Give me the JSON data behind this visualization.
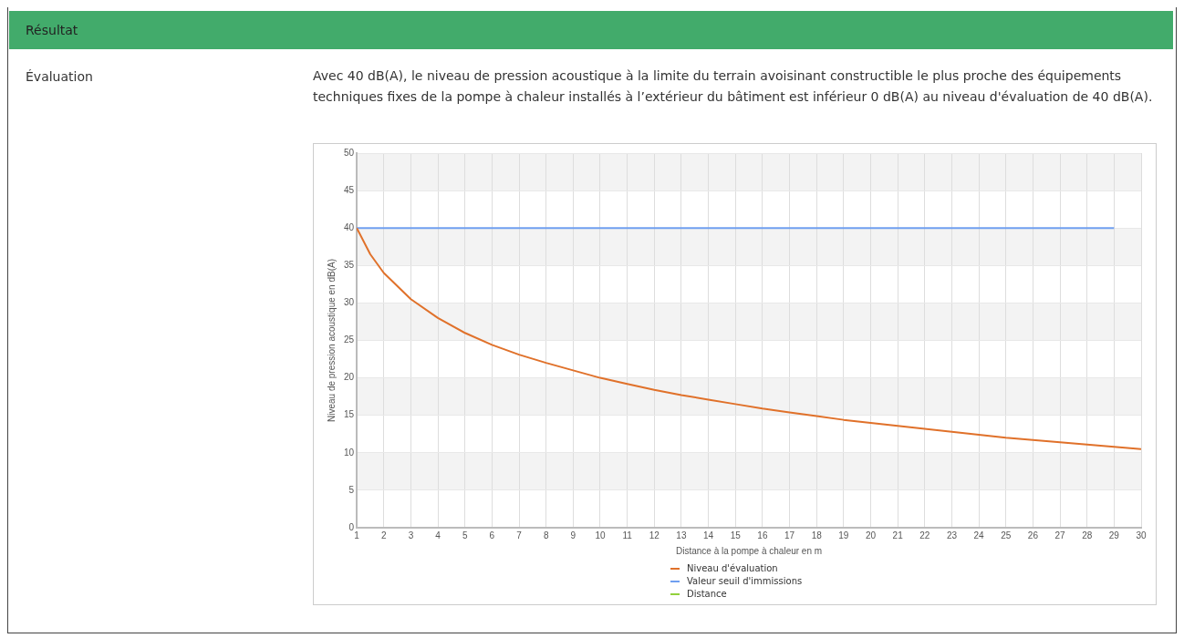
{
  "chart_data": {
    "type": "line",
    "title": "Résultat",
    "subtitle": "Avec 40 dB(A), le niveau de pression acoustique à la limite du terrain avoisinant constructible le plus proche des équipements techniques fixes de la pompe à chaleur installés à l’extérieur du bâtiment est inférieur 0 dB(A) au niveau d'évaluation de 40 dB(A).",
    "annotations": [
      "Évaluation"
    ],
    "xlabel": "Distance à la pompe à chaleur en m",
    "ylabel": "Niveau de pression acoustique en dB(A)",
    "x": [
      1,
      1.5,
      2,
      3,
      4,
      5,
      6,
      7,
      8,
      9,
      10,
      11,
      12,
      13,
      14,
      15,
      16,
      17,
      18,
      19,
      20,
      21,
      22,
      23,
      24,
      25,
      26,
      27,
      28,
      29,
      30
    ],
    "series": [
      {
        "name": "Niveau d'évaluation",
        "color": "#e0712a",
        "values": [
          40,
          36.5,
          34,
          30.5,
          28,
          26,
          24.4,
          23.1,
          22,
          21,
          20,
          19.2,
          18.4,
          17.7,
          17.1,
          16.5,
          15.9,
          15.4,
          14.9,
          14.4,
          14,
          13.6,
          13.2,
          12.8,
          12.4,
          12,
          11.7,
          11.4,
          11.1,
          10.8,
          10.5
        ]
      },
      {
        "name": "Valeur seuil d'immissions",
        "color": "#6f9ff0",
        "x": [
          1,
          29
        ],
        "values": [
          40,
          40
        ]
      },
      {
        "name": "Distance",
        "color": "#92d13c",
        "values": [
          null,
          null,
          null,
          null,
          null,
          null,
          null,
          null,
          null,
          null,
          null,
          null,
          null,
          null,
          null,
          null,
          null,
          null,
          null,
          null,
          null,
          null,
          null,
          null,
          null,
          null,
          null,
          null,
          null,
          null,
          null
        ]
      }
    ],
    "xlim": [
      1,
      30
    ],
    "xticks": [
      1,
      2,
      3,
      4,
      5,
      6,
      7,
      8,
      9,
      10,
      11,
      12,
      13,
      14,
      15,
      16,
      17,
      18,
      19,
      20,
      21,
      22,
      23,
      24,
      25,
      26,
      27,
      28,
      29,
      30
    ],
    "ylim": [
      0,
      50
    ],
    "yticks": [
      0,
      5,
      10,
      15,
      20,
      25,
      30,
      35,
      40,
      45,
      50
    ],
    "grid": true,
    "legend": "bottom",
    "marker": "none",
    "line_style": "solid"
  }
}
